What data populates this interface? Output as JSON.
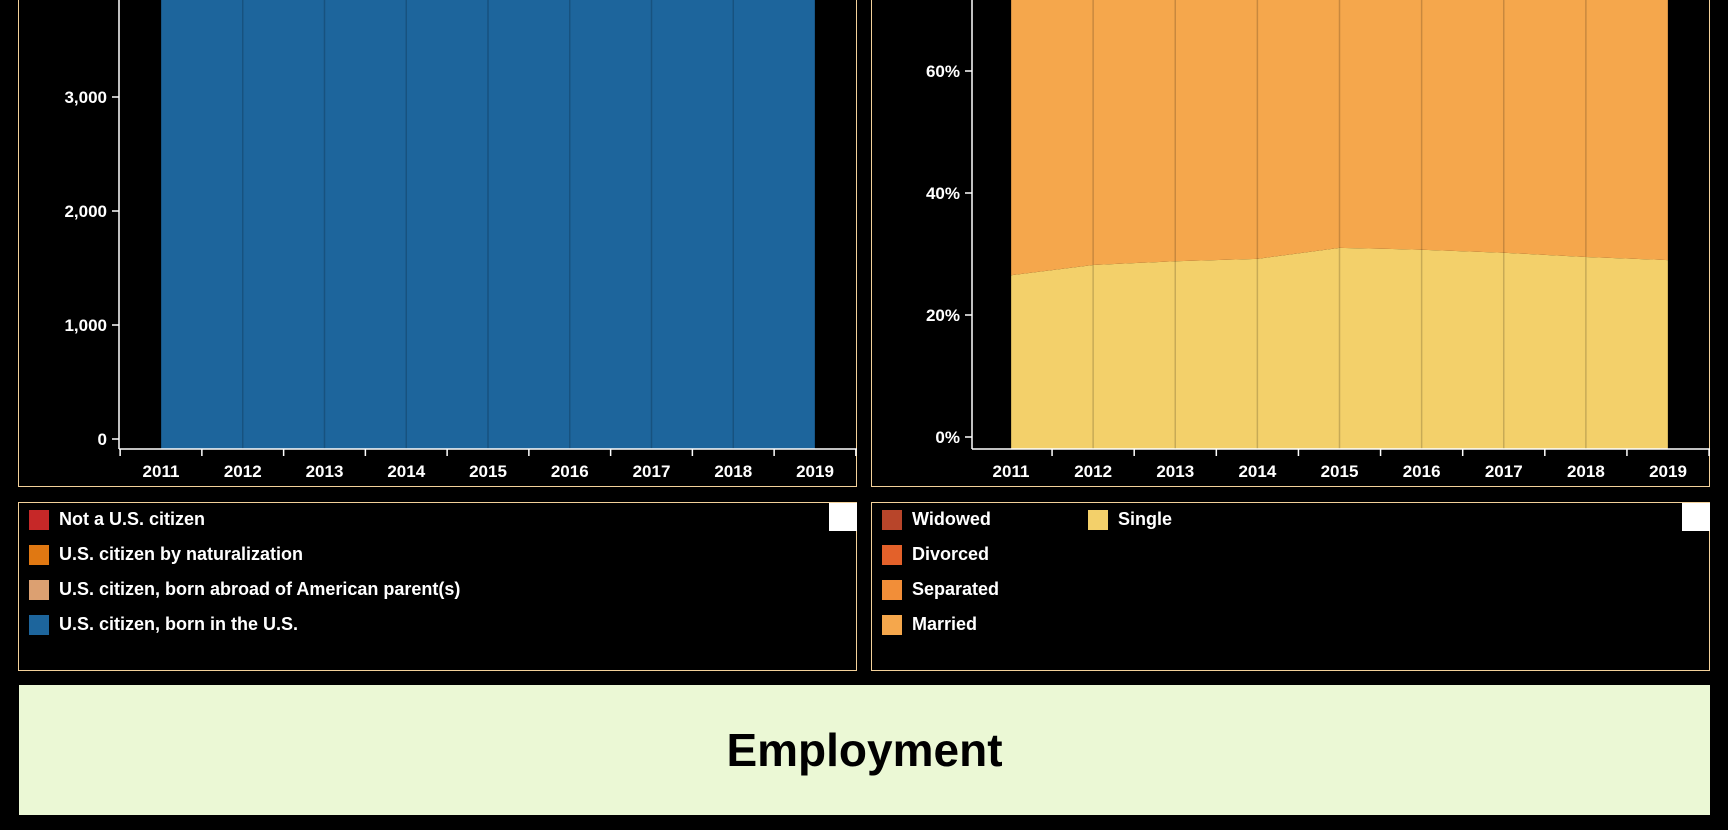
{
  "chart_data": [
    {
      "type": "area",
      "x": [
        "2011",
        "2012",
        "2013",
        "2014",
        "2015",
        "2016",
        "2017",
        "2018",
        "2019"
      ],
      "y_ticks": [
        "0",
        "1,000",
        "2,000",
        "3,000"
      ],
      "ylim": [
        0,
        4000
      ],
      "series": [
        {
          "name": "Not a U.S. citizen",
          "values": [
            0,
            0,
            0,
            0,
            0,
            0,
            0,
            0,
            0
          ]
        },
        {
          "name": "U.S. citizen by naturalization",
          "values": [
            0,
            0,
            0,
            0,
            0,
            0,
            0,
            0,
            0
          ]
        },
        {
          "name": "U.S. citizen, born abroad of American parent(s)",
          "values": [
            0,
            0,
            0,
            0,
            0,
            0,
            0,
            0,
            0
          ]
        },
        {
          "name": "U.S. citizen, born in the U.S.",
          "values": [
            4000,
            4000,
            4000,
            4000,
            4000,
            4000,
            4000,
            4000,
            4000
          ]
        }
      ],
      "colors": [
        "#c62828",
        "#e07812",
        "#dca071",
        "#1d659c"
      ]
    },
    {
      "type": "area",
      "x": [
        "2011",
        "2012",
        "2013",
        "2014",
        "2015",
        "2016",
        "2017",
        "2018",
        "2019"
      ],
      "y_ticks": [
        "0%",
        "20%",
        "40%",
        "60%"
      ],
      "ylim": [
        0,
        74
      ],
      "series": [
        {
          "name": "Single",
          "values": [
            28.5,
            30.2,
            30.8,
            31.2,
            33,
            32.7,
            32.2,
            31.5,
            31
          ]
        },
        {
          "name": "Married",
          "values": [
            45.5,
            43.8,
            43.2,
            42.8,
            41,
            41.3,
            41.8,
            42.5,
            43
          ]
        },
        {
          "name": "Separated",
          "values": [
            0,
            0,
            0,
            0,
            0,
            0,
            0,
            0,
            0
          ]
        },
        {
          "name": "Divorced",
          "values": [
            0,
            0,
            0,
            0,
            0,
            0,
            0,
            0,
            0
          ]
        },
        {
          "name": "Widowed",
          "values": [
            0,
            0,
            0,
            0,
            0,
            0,
            0,
            0,
            0
          ]
        }
      ],
      "colors": [
        "#f3d06a",
        "#f5a74c",
        "#f28e38",
        "#e3612a",
        "#b8452a"
      ]
    }
  ],
  "legends": {
    "left": [
      {
        "label": "Not a U.S. citizen",
        "color": "#c62828"
      },
      {
        "label": "U.S. citizen by naturalization",
        "color": "#e07812"
      },
      {
        "label": "U.S. citizen, born abroad of American parent(s)",
        "color": "#dca071"
      },
      {
        "label": "U.S. citizen, born in the U.S.",
        "color": "#1d659c"
      }
    ],
    "right": [
      {
        "label": "Widowed",
        "color": "#b8452a"
      },
      {
        "label": "Divorced",
        "color": "#e3612a"
      },
      {
        "label": "Separated",
        "color": "#f28e38"
      },
      {
        "label": "Married",
        "color": "#f5a74c"
      },
      {
        "label": "Single",
        "color": "#f3d06a"
      }
    ]
  },
  "section": {
    "title": "Employment"
  }
}
